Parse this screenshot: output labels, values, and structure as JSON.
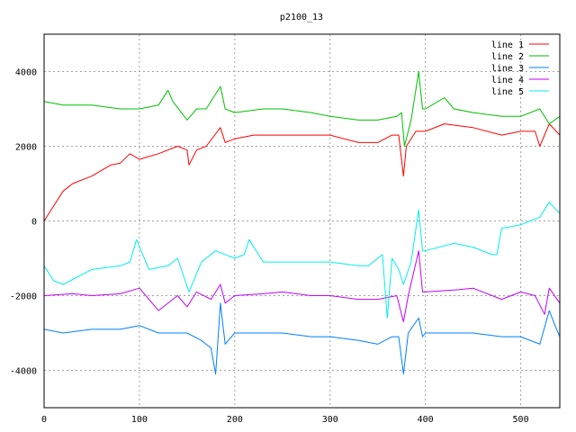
{
  "chart_data": {
    "type": "line",
    "title": "p2100_13",
    "xlabel": "",
    "ylabel": "",
    "xlim": [
      0,
      541
    ],
    "ylim": [
      -5000,
      5000
    ],
    "xticks": [
      0,
      100,
      200,
      300,
      400,
      500
    ],
    "yticks": [
      -4000,
      -2000,
      0,
      2000,
      4000
    ],
    "grid": true,
    "legend_position": "top-right",
    "series": [
      {
        "name": "line 1",
        "color": "#ff0000",
        "x": [
          0,
          10,
          20,
          30,
          50,
          70,
          80,
          90,
          100,
          120,
          140,
          150,
          152,
          160,
          170,
          185,
          190,
          200,
          220,
          250,
          280,
          300,
          330,
          350,
          365,
          372,
          377,
          380,
          390,
          400,
          420,
          450,
          480,
          500,
          515,
          520,
          530,
          541
        ],
        "y": [
          0,
          400,
          800,
          1000,
          1200,
          1500,
          1550,
          1800,
          1650,
          1800,
          2000,
          1900,
          1500,
          1900,
          2000,
          2500,
          2100,
          2200,
          2300,
          2300,
          2300,
          2300,
          2100,
          2100,
          2300,
          2300,
          1200,
          2000,
          2400,
          2400,
          2600,
          2500,
          2300,
          2400,
          2400,
          2000,
          2600,
          2300
        ]
      },
      {
        "name": "line 2",
        "color": "#00c000",
        "x": [
          0,
          20,
          50,
          80,
          100,
          120,
          130,
          135,
          150,
          160,
          170,
          185,
          190,
          200,
          230,
          250,
          280,
          300,
          330,
          350,
          370,
          375,
          378,
          385,
          393,
          397,
          400,
          420,
          430,
          450,
          480,
          500,
          520,
          530,
          541
        ],
        "y": [
          3200,
          3100,
          3100,
          3000,
          3000,
          3100,
          3500,
          3200,
          2700,
          3000,
          3000,
          3600,
          3000,
          2900,
          3000,
          3000,
          2900,
          2800,
          2700,
          2700,
          2800,
          2900,
          2000,
          2700,
          4000,
          3000,
          3000,
          3300,
          3000,
          2900,
          2800,
          2800,
          3000,
          2600,
          2800
        ]
      },
      {
        "name": "line 3",
        "color": "#0080ff",
        "x": [
          0,
          20,
          50,
          80,
          100,
          120,
          150,
          165,
          175,
          180,
          185,
          190,
          200,
          230,
          250,
          280,
          300,
          330,
          350,
          365,
          372,
          377,
          382,
          393,
          397,
          400,
          430,
          450,
          480,
          500,
          520,
          530,
          536,
          541
        ],
        "y": [
          -2900,
          -3000,
          -2900,
          -2900,
          -2800,
          -3000,
          -3000,
          -3200,
          -3400,
          -4100,
          -2200,
          -3300,
          -3000,
          -3000,
          -3000,
          -3100,
          -3100,
          -3200,
          -3300,
          -3100,
          -3100,
          -4100,
          -3000,
          -2600,
          -3100,
          -3000,
          -3000,
          -3000,
          -3100,
          -3100,
          -3300,
          -2400,
          -2800,
          -3100
        ]
      },
      {
        "name": "line 4",
        "color": "#c000ff",
        "x": [
          0,
          30,
          50,
          80,
          100,
          120,
          140,
          150,
          160,
          175,
          185,
          190,
          200,
          230,
          250,
          280,
          300,
          330,
          350,
          370,
          377,
          382,
          393,
          397,
          400,
          430,
          450,
          480,
          500,
          515,
          525,
          530,
          541
        ],
        "y": [
          -2000,
          -1950,
          -2000,
          -1950,
          -1800,
          -2400,
          -2000,
          -2300,
          -1900,
          -2100,
          -1700,
          -2200,
          -2000,
          -1950,
          -1900,
          -2000,
          -2000,
          -2100,
          -2100,
          -2000,
          -2700,
          -2000,
          -800,
          -1900,
          -1900,
          -1850,
          -1800,
          -2100,
          -1900,
          -2000,
          -2500,
          -1800,
          -2200
        ]
      },
      {
        "name": "line 5",
        "color": "#00eeee",
        "x": [
          0,
          10,
          20,
          50,
          80,
          90,
          97,
          110,
          130,
          140,
          152,
          165,
          180,
          200,
          210,
          215,
          230,
          250,
          280,
          300,
          330,
          340,
          355,
          360,
          365,
          372,
          377,
          385,
          393,
          397,
          400,
          430,
          450,
          470,
          475,
          480,
          500,
          510,
          520,
          530,
          541
        ],
        "y": [
          -1200,
          -1600,
          -1700,
          -1300,
          -1200,
          -1100,
          -500,
          -1300,
          -1200,
          -1000,
          -1900,
          -1100,
          -800,
          -1000,
          -900,
          -500,
          -1100,
          -1100,
          -1100,
          -1100,
          -1200,
          -1200,
          -900,
          -2600,
          -1000,
          -1300,
          -1700,
          -1100,
          300,
          -800,
          -800,
          -600,
          -700,
          -900,
          -900,
          -200,
          -100,
          0,
          100,
          500,
          200
        ]
      }
    ]
  }
}
